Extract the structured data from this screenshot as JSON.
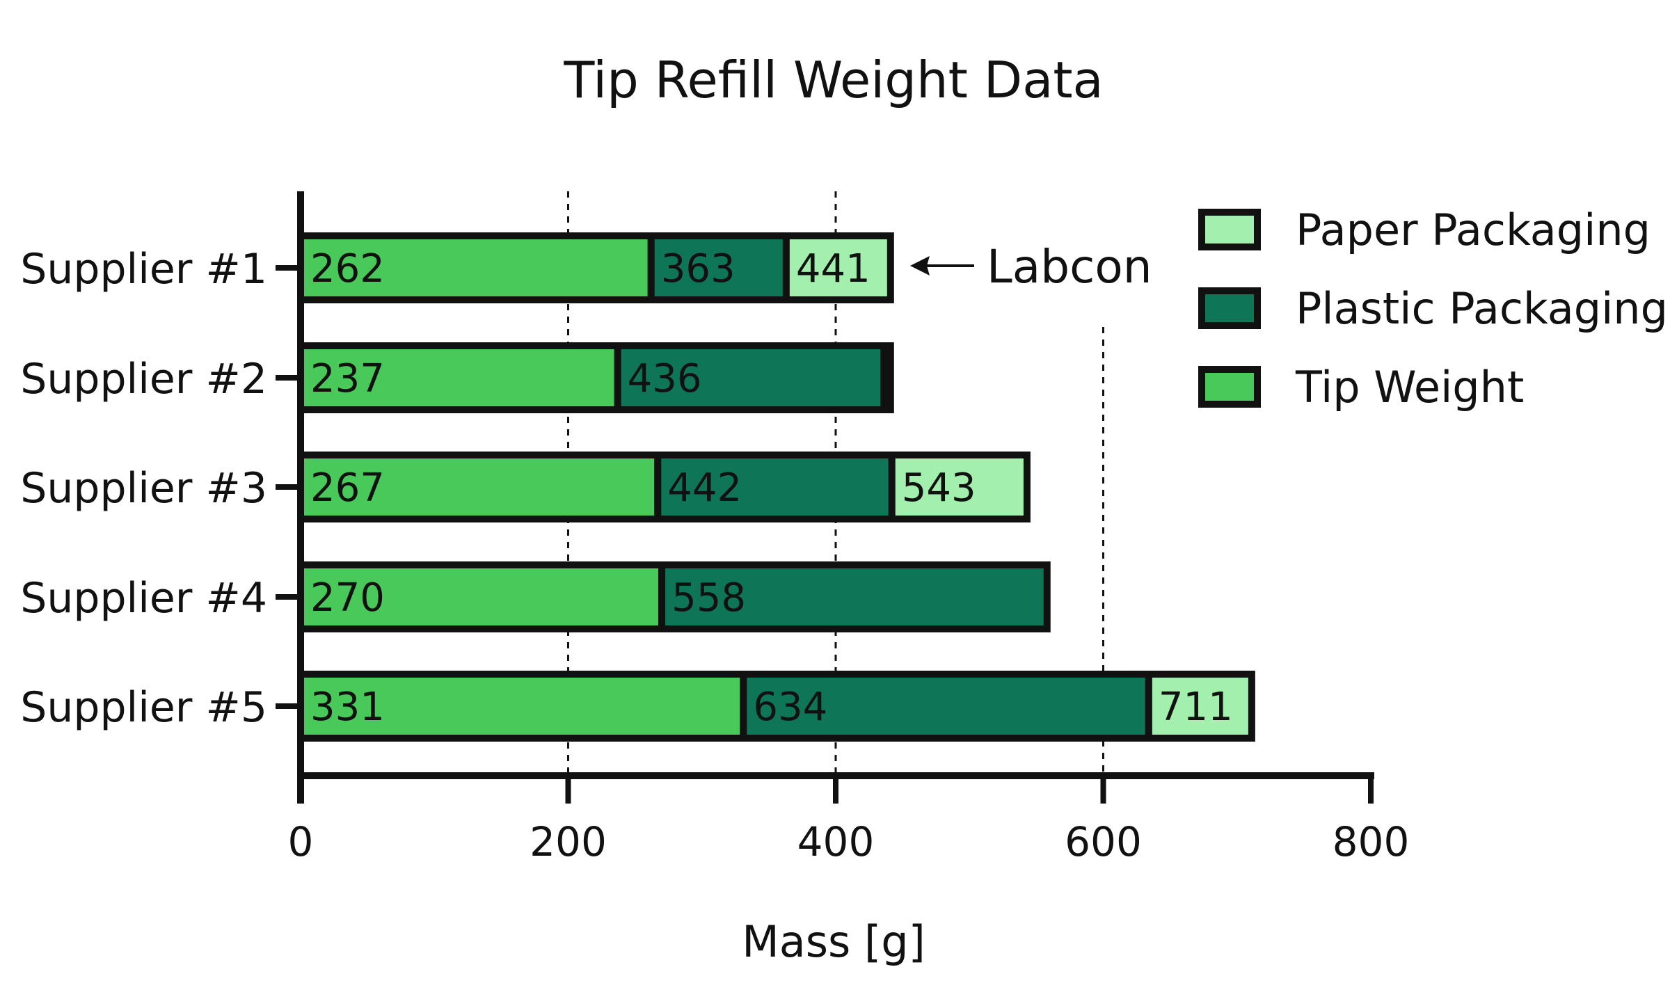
{
  "chart_data": {
    "type": "bar",
    "orientation": "horizontal",
    "stacked": true,
    "title": "Tip Refill Weight Data",
    "xlabel": "Mass [g]",
    "ylabel": "",
    "xlim": [
      0,
      800
    ],
    "x_ticks": [
      "0",
      "200",
      "400",
      "600",
      "800"
    ],
    "gridlines": [
      200,
      400,
      600
    ],
    "grid": "dashed vertical",
    "legend_position": "top-right",
    "categories": [
      "Supplier #1",
      "Supplier #2",
      "Supplier #3",
      "Supplier #4",
      "Supplier #5"
    ],
    "series": [
      {
        "name": "Tip Weight",
        "color": "#48c959",
        "cumulative": [
          262,
          237,
          267,
          270,
          331
        ],
        "labels": [
          "262",
          "237",
          "267",
          "270",
          "331"
        ]
      },
      {
        "name": "Plastic Packaging",
        "color": "#0f7557",
        "cumulative": [
          363,
          436,
          442,
          558,
          634
        ],
        "labels": [
          "363",
          "436",
          "442",
          "558",
          "634"
        ]
      },
      {
        "name": "Paper Packaging",
        "color": "#a3f0ae",
        "cumulative": [
          441,
          441,
          543,
          558,
          711
        ],
        "labels": [
          "441",
          "",
          "543",
          "",
          "711"
        ]
      }
    ],
    "legend_order": [
      "Paper Packaging",
      "Plastic Packaging",
      "Tip Weight"
    ],
    "annotation": {
      "text": "Labcon",
      "category": "Supplier #1"
    }
  }
}
